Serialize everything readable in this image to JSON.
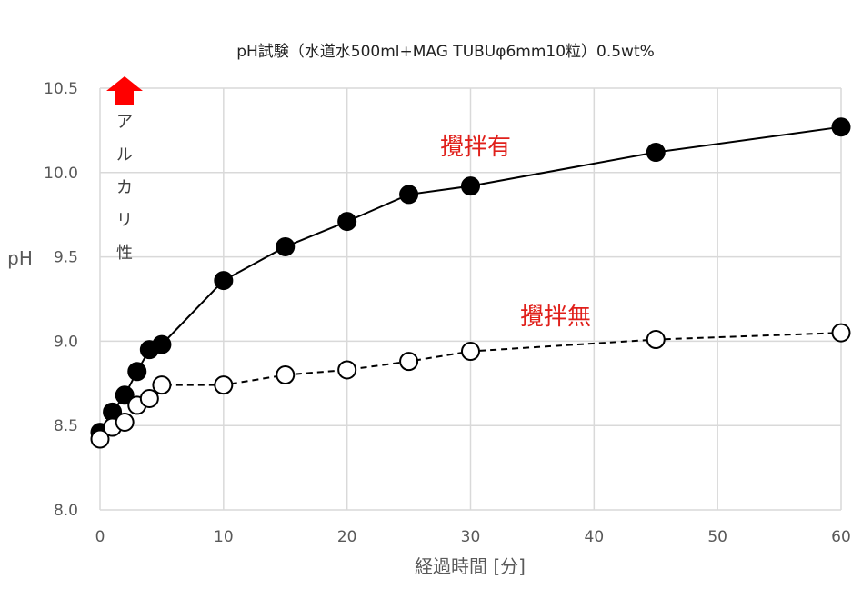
{
  "chart_data": {
    "type": "scatter",
    "title": "pH試験（水道水500ml+MAG TUBUφ6mm10粒）0.5wt%",
    "xlabel": "経過時間 [分]",
    "ylabel": "pH",
    "xlim": [
      0,
      60
    ],
    "ylim": [
      8.0,
      10.5
    ],
    "x_ticks": [
      "0",
      "10",
      "20",
      "30",
      "40",
      "50",
      "60"
    ],
    "y_ticks": [
      "8.0",
      "8.5",
      "9.0",
      "9.5",
      "10.0",
      "10.5"
    ],
    "grid": true,
    "series": [
      {
        "name": "攪拌有",
        "marker": "filled-circle",
        "line": "solid",
        "color": "#000000",
        "points": [
          [
            0,
            8.46
          ],
          [
            1,
            8.58
          ],
          [
            2,
            8.68
          ],
          [
            3,
            8.82
          ],
          [
            4,
            8.95
          ],
          [
            5,
            8.98
          ],
          [
            10,
            9.36
          ],
          [
            15,
            9.56
          ],
          [
            20,
            9.71
          ],
          [
            25,
            9.87
          ],
          [
            30,
            9.92
          ],
          [
            45,
            10.12
          ],
          [
            60,
            10.27
          ]
        ]
      },
      {
        "name": "攪拌無",
        "marker": "open-circle",
        "line": "dashed",
        "color": "#000000",
        "points": [
          [
            0,
            8.42
          ],
          [
            1,
            8.49
          ],
          [
            2,
            8.52
          ],
          [
            3,
            8.62
          ],
          [
            4,
            8.66
          ],
          [
            5,
            8.74
          ],
          [
            10,
            8.74
          ],
          [
            15,
            8.8
          ],
          [
            20,
            8.83
          ],
          [
            25,
            8.88
          ],
          [
            30,
            8.94
          ],
          [
            45,
            9.01
          ],
          [
            60,
            9.05
          ]
        ]
      }
    ],
    "annotations": [
      {
        "text": "攪拌有",
        "color": "#e0201b"
      },
      {
        "text": "攪拌無",
        "color": "#e0201b"
      },
      {
        "text": "アルカリ性",
        "orientation": "vertical",
        "icon": "up-arrow-icon",
        "color": "#ff0000"
      }
    ]
  }
}
